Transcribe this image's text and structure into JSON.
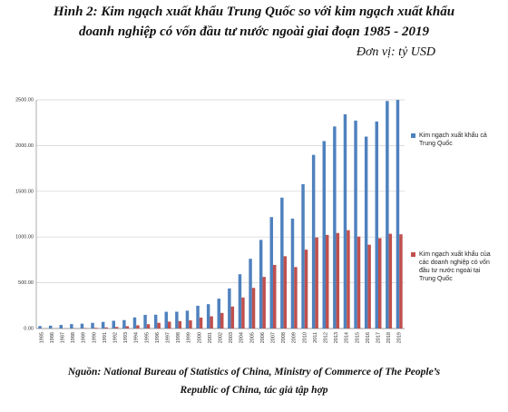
{
  "chart_data": {
    "type": "bar",
    "title": [
      "Hình 2: Kim ngạch xuất khẩu Trung Quốc so với kim ngạch xuất khẩu",
      "doanh nghiệp có vốn đầu tư nước ngoài giai đoạn 1985 - 2019"
    ],
    "unit": "Đơn vị: tỷ USD",
    "source": [
      "Nguồn: National Bureau of Statistics of China, Ministry of Commerce of The People’s",
      "Republic of China, tác giả tập hợp"
    ],
    "categories": [
      "1985",
      "1986",
      "1987",
      "1988",
      "1989",
      "1990",
      "1991",
      "1992",
      "1993",
      "1994",
      "1995",
      "1996",
      "1997",
      "1998",
      "1999",
      "2000",
      "2001",
      "2002",
      "2003",
      "2004",
      "2005",
      "2006",
      "2007",
      "2008",
      "2009",
      "2010",
      "2011",
      "2012",
      "2013",
      "2014",
      "2015",
      "2016",
      "2017",
      "2018",
      "2019"
    ],
    "series": [
      {
        "name": "Kim ngạch xuất khẩu cả Trung Quốc",
        "color": "#4f81bd",
        "values": [
          27,
          31,
          39,
          48,
          53,
          62,
          72,
          85,
          92,
          121,
          149,
          151,
          183,
          184,
          195,
          249,
          266,
          326,
          438,
          593,
          762,
          969,
          1218,
          1431,
          1202,
          1578,
          1898,
          2049,
          2209,
          2342,
          2273,
          2098,
          2263,
          2487,
          2499
        ]
      },
      {
        "name": "Kim ngạch xuất khẩu của các doanh nghiệp có vốn đầu tư nước ngoài tại Trung Quốc",
        "color": "#c0504d",
        "values": [
          0.3,
          0.5,
          1.2,
          2.5,
          5,
          8,
          12,
          17,
          25,
          35,
          47,
          62,
          75,
          81,
          89,
          119,
          133,
          170,
          240,
          339,
          444,
          564,
          695,
          790,
          672,
          862,
          995,
          1023,
          1044,
          1075,
          1005,
          916,
          988,
          1036,
          1030
        ]
      }
    ],
    "ylim": [
      0,
      2500
    ],
    "yticks": [
      {
        "value": 0,
        "label": "0.00"
      },
      {
        "value": 500,
        "label": "500.00"
      },
      {
        "value": 1000,
        "label": "1000.00"
      },
      {
        "value": 1500,
        "label": "1500.00"
      },
      {
        "value": 2000,
        "label": "2000.00"
      },
      {
        "value": 2500,
        "label": "2500.00"
      }
    ],
    "grid": true,
    "legend": "right"
  }
}
